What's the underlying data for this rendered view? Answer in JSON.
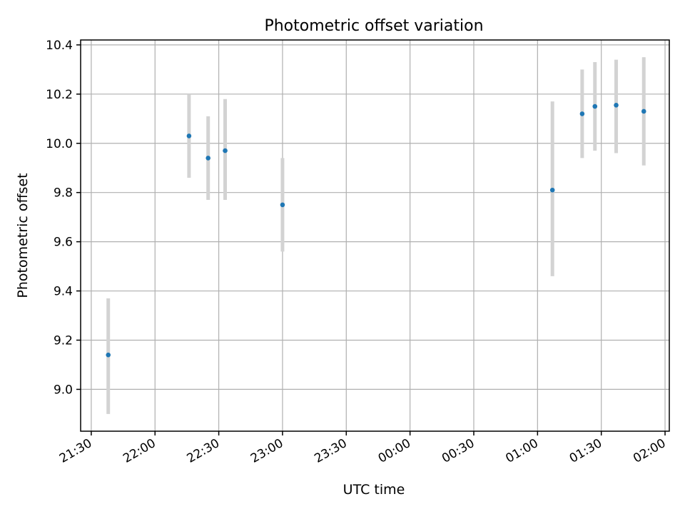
{
  "chart_data": {
    "type": "scatter",
    "title": "Photometric offset variation",
    "xlabel": "UTC time",
    "ylabel": "Photometric offset",
    "x_ticks": [
      "21:30",
      "22:00",
      "22:30",
      "23:00",
      "23:30",
      "00:00",
      "00:30",
      "01:00",
      "01:30",
      "02:00"
    ],
    "y_ticks": [
      "9.0",
      "9.2",
      "9.4",
      "9.6",
      "9.8",
      "10.0",
      "10.2",
      "10.4"
    ],
    "xlim": [
      "21:25",
      "02:02"
    ],
    "ylim": [
      8.83,
      10.42
    ],
    "grid": true,
    "error_bar_color": "#d3d3d3",
    "point_color": "#1f77b4",
    "series": [
      {
        "points": [
          {
            "x": "21:38",
            "y": 9.14,
            "err_low": 8.9,
            "err_high": 9.37
          },
          {
            "x": "22:16",
            "y": 10.03,
            "err_low": 9.86,
            "err_high": 10.2
          },
          {
            "x": "22:25",
            "y": 9.94,
            "err_low": 9.77,
            "err_high": 10.11
          },
          {
            "x": "22:33",
            "y": 9.97,
            "err_low": 9.77,
            "err_high": 10.18
          },
          {
            "x": "23:00",
            "y": 9.75,
            "err_low": 9.56,
            "err_high": 9.94
          },
          {
            "x": "01:07",
            "y": 9.81,
            "err_low": 9.46,
            "err_high": 10.17
          },
          {
            "x": "01:21",
            "y": 10.12,
            "err_low": 9.94,
            "err_high": 10.3
          },
          {
            "x": "01:27",
            "y": 10.15,
            "err_low": 9.97,
            "err_high": 10.33
          },
          {
            "x": "01:37",
            "y": 10.155,
            "err_low": 9.96,
            "err_high": 10.34
          },
          {
            "x": "01:50",
            "y": 10.13,
            "err_low": 9.91,
            "err_high": 10.35
          }
        ]
      }
    ]
  }
}
